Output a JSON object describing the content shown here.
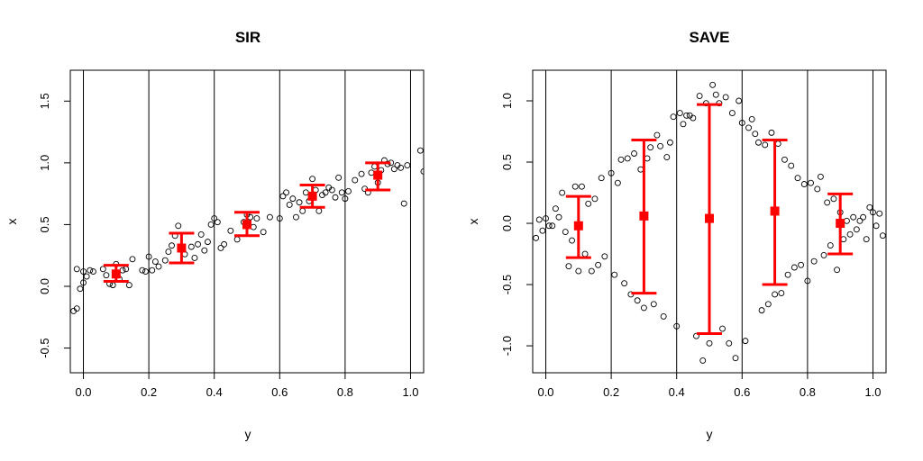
{
  "chart_data": [
    {
      "type": "scatter",
      "title": "SIR",
      "xlabel": "y",
      "ylabel": "x",
      "xlim": [
        -0.04,
        1.04
      ],
      "ylim": [
        -0.7,
        1.75
      ],
      "xticks": [
        "0.0",
        "0.2",
        "0.4",
        "0.6",
        "0.8",
        "1.0"
      ],
      "xtick_values": [
        0,
        0.2,
        0.4,
        0.6,
        0.8,
        1.0
      ],
      "yticks": [
        "-0.5",
        "0.0",
        "0.5",
        "1.0",
        "1.5"
      ],
      "ytick_values": [
        -0.5,
        0,
        0.5,
        1.0,
        1.5
      ],
      "slice_boundaries": [
        0,
        0.2,
        0.4,
        0.6,
        0.8,
        1.0
      ],
      "grid": false,
      "colors": {
        "points": "#000000",
        "summary": "#ff0000"
      },
      "slice_summaries": [
        {
          "x": 0.1,
          "mean": 0.1,
          "lower": 0.04,
          "upper": 0.17
        },
        {
          "x": 0.3,
          "mean": 0.31,
          "lower": 0.19,
          "upper": 0.43
        },
        {
          "x": 0.5,
          "mean": 0.5,
          "lower": 0.41,
          "upper": 0.6
        },
        {
          "x": 0.7,
          "mean": 0.73,
          "lower": 0.64,
          "upper": 0.82
        },
        {
          "x": 0.9,
          "mean": 0.9,
          "lower": 0.78,
          "upper": 1.0
        }
      ],
      "points": [
        [
          -0.03,
          -0.2
        ],
        [
          -0.02,
          -0.18
        ],
        [
          -0.01,
          -0.02
        ],
        [
          0.0,
          0.03
        ],
        [
          0.01,
          0.08
        ],
        [
          -0.02,
          0.14
        ],
        [
          0.0,
          0.12
        ],
        [
          0.02,
          0.13
        ],
        [
          0.03,
          0.12
        ],
        [
          0.06,
          0.14
        ],
        [
          0.07,
          0.09
        ],
        [
          0.08,
          0.02
        ],
        [
          0.09,
          0.01
        ],
        [
          0.1,
          0.18
        ],
        [
          0.11,
          0.06
        ],
        [
          0.12,
          0.13
        ],
        [
          0.14,
          0.01
        ],
        [
          0.15,
          0.22
        ],
        [
          0.13,
          0.14
        ],
        [
          0.18,
          0.13
        ],
        [
          0.19,
          0.12
        ],
        [
          0.2,
          0.24
        ],
        [
          0.21,
          0.13
        ],
        [
          0.22,
          0.2
        ],
        [
          0.23,
          0.16
        ],
        [
          0.25,
          0.21
        ],
        [
          0.26,
          0.28
        ],
        [
          0.27,
          0.33
        ],
        [
          0.28,
          0.41
        ],
        [
          0.29,
          0.49
        ],
        [
          0.31,
          0.26
        ],
        [
          0.33,
          0.32
        ],
        [
          0.34,
          0.23
        ],
        [
          0.35,
          0.34
        ],
        [
          0.36,
          0.42
        ],
        [
          0.37,
          0.29
        ],
        [
          0.38,
          0.36
        ],
        [
          0.39,
          0.5
        ],
        [
          0.4,
          0.55
        ],
        [
          0.41,
          0.52
        ],
        [
          0.42,
          0.31
        ],
        [
          0.43,
          0.34
        ],
        [
          0.45,
          0.45
        ],
        [
          0.47,
          0.38
        ],
        [
          0.49,
          0.52
        ],
        [
          0.5,
          0.58
        ],
        [
          0.51,
          0.56
        ],
        [
          0.52,
          0.48
        ],
        [
          0.53,
          0.55
        ],
        [
          0.55,
          0.44
        ],
        [
          0.57,
          0.56
        ],
        [
          0.6,
          0.55
        ],
        [
          0.61,
          0.73
        ],
        [
          0.62,
          0.76
        ],
        [
          0.63,
          0.66
        ],
        [
          0.64,
          0.71
        ],
        [
          0.65,
          0.56
        ],
        [
          0.66,
          0.68
        ],
        [
          0.67,
          0.61
        ],
        [
          0.68,
          0.76
        ],
        [
          0.69,
          0.69
        ],
        [
          0.7,
          0.87
        ],
        [
          0.71,
          0.78
        ],
        [
          0.72,
          0.61
        ],
        [
          0.73,
          0.74
        ],
        [
          0.74,
          0.76
        ],
        [
          0.75,
          0.8
        ],
        [
          0.76,
          0.78
        ],
        [
          0.77,
          0.72
        ],
        [
          0.78,
          0.88
        ],
        [
          0.79,
          0.76
        ],
        [
          0.8,
          0.71
        ],
        [
          0.81,
          0.77
        ],
        [
          0.83,
          0.86
        ],
        [
          0.85,
          0.91
        ],
        [
          0.86,
          0.79
        ],
        [
          0.87,
          0.76
        ],
        [
          0.88,
          0.92
        ],
        [
          0.89,
          0.97
        ],
        [
          0.9,
          0.84
        ],
        [
          0.91,
          0.94
        ],
        [
          0.92,
          1.02
        ],
        [
          0.93,
          0.99
        ],
        [
          0.94,
          1.0
        ],
        [
          0.95,
          0.95
        ],
        [
          0.96,
          0.98
        ],
        [
          0.97,
          0.96
        ],
        [
          0.98,
          0.67
        ],
        [
          0.99,
          0.98
        ],
        [
          1.03,
          1.1
        ],
        [
          1.04,
          0.93
        ]
      ]
    },
    {
      "type": "scatter",
      "title": "SAVE",
      "xlabel": "y",
      "ylabel": "x",
      "xlim": [
        -0.04,
        1.04
      ],
      "ylim": [
        -1.22,
        1.25
      ],
      "xticks": [
        "0.0",
        "0.2",
        "0.4",
        "0.6",
        "0.8",
        "1.0"
      ],
      "xtick_values": [
        0,
        0.2,
        0.4,
        0.6,
        0.8,
        1.0
      ],
      "yticks": [
        "-1.0",
        "-0.5",
        "0.0",
        "0.5",
        "1.0"
      ],
      "ytick_values": [
        -1.0,
        -0.5,
        0,
        0.5,
        1.0
      ],
      "slice_boundaries": [
        0,
        0.2,
        0.4,
        0.6,
        0.8,
        1.0
      ],
      "grid": false,
      "colors": {
        "points": "#000000",
        "summary": "#ff0000"
      },
      "slice_summaries": [
        {
          "x": 0.1,
          "mean": -0.02,
          "lower": -0.28,
          "upper": 0.22
        },
        {
          "x": 0.3,
          "mean": 0.06,
          "lower": -0.57,
          "upper": 0.68
        },
        {
          "x": 0.5,
          "mean": 0.04,
          "lower": -0.9,
          "upper": 0.97
        },
        {
          "x": 0.7,
          "mean": 0.1,
          "lower": -0.5,
          "upper": 0.68
        },
        {
          "x": 0.9,
          "mean": 0.0,
          "lower": -0.25,
          "upper": 0.24
        }
      ],
      "points": [
        [
          -0.03,
          -0.12
        ],
        [
          -0.02,
          0.03
        ],
        [
          -0.01,
          -0.06
        ],
        [
          0.0,
          0.04
        ],
        [
          0.01,
          -0.02
        ],
        [
          0.02,
          -0.02
        ],
        [
          0.03,
          0.12
        ],
        [
          0.04,
          0.05
        ],
        [
          0.05,
          0.25
        ],
        [
          0.06,
          -0.07
        ],
        [
          0.07,
          -0.35
        ],
        [
          0.08,
          -0.14
        ],
        [
          0.09,
          0.3
        ],
        [
          0.1,
          -0.39
        ],
        [
          0.11,
          0.3
        ],
        [
          0.12,
          -0.25
        ],
        [
          0.13,
          0.16
        ],
        [
          0.14,
          -0.39
        ],
        [
          0.15,
          0.2
        ],
        [
          0.16,
          -0.34
        ],
        [
          0.17,
          0.37
        ],
        [
          0.18,
          -0.27
        ],
        [
          0.2,
          0.41
        ],
        [
          0.21,
          -0.42
        ],
        [
          0.22,
          0.33
        ],
        [
          0.23,
          0.52
        ],
        [
          0.24,
          -0.49
        ],
        [
          0.25,
          0.53
        ],
        [
          0.26,
          -0.58
        ],
        [
          0.27,
          0.57
        ],
        [
          0.28,
          -0.63
        ],
        [
          0.29,
          0.44
        ],
        [
          0.3,
          -0.69
        ],
        [
          0.31,
          0.53
        ],
        [
          0.32,
          0.62
        ],
        [
          0.33,
          -0.66
        ],
        [
          0.34,
          0.72
        ],
        [
          0.35,
          0.63
        ],
        [
          0.36,
          -0.76
        ],
        [
          0.37,
          0.54
        ],
        [
          0.38,
          0.66
        ],
        [
          0.39,
          0.87
        ],
        [
          0.4,
          -0.84
        ],
        [
          0.41,
          0.9
        ],
        [
          0.42,
          0.81
        ],
        [
          0.43,
          0.88
        ],
        [
          0.44,
          0.88
        ],
        [
          0.45,
          0.86
        ],
        [
          0.46,
          -0.92
        ],
        [
          0.47,
          1.04
        ],
        [
          0.48,
          -1.12
        ],
        [
          0.49,
          0.98
        ],
        [
          0.5,
          -0.98
        ],
        [
          0.51,
          1.13
        ],
        [
          0.52,
          1.05
        ],
        [
          0.53,
          0.98
        ],
        [
          0.54,
          -0.86
        ],
        [
          0.55,
          1.03
        ],
        [
          0.56,
          -0.98
        ],
        [
          0.57,
          0.9
        ],
        [
          0.58,
          -1.1
        ],
        [
          0.59,
          1.0
        ],
        [
          0.6,
          0.82
        ],
        [
          0.61,
          -0.96
        ],
        [
          0.62,
          0.78
        ],
        [
          0.63,
          0.85
        ],
        [
          0.64,
          0.73
        ],
        [
          0.65,
          0.66
        ],
        [
          0.66,
          -0.71
        ],
        [
          0.67,
          0.64
        ],
        [
          0.68,
          -0.66
        ],
        [
          0.69,
          0.74
        ],
        [
          0.7,
          -0.58
        ],
        [
          0.71,
          0.65
        ],
        [
          0.72,
          -0.57
        ],
        [
          0.73,
          0.52
        ],
        [
          0.74,
          -0.42
        ],
        [
          0.75,
          0.47
        ],
        [
          0.76,
          -0.36
        ],
        [
          0.77,
          0.37
        ],
        [
          0.78,
          -0.34
        ],
        [
          0.79,
          0.32
        ],
        [
          0.8,
          -0.47
        ],
        [
          0.81,
          0.33
        ],
        [
          0.82,
          -0.31
        ],
        [
          0.83,
          0.28
        ],
        [
          0.84,
          0.38
        ],
        [
          0.85,
          -0.26
        ],
        [
          0.86,
          0.17
        ],
        [
          0.87,
          -0.18
        ],
        [
          0.88,
          0.2
        ],
        [
          0.89,
          -0.38
        ],
        [
          0.9,
          0.09
        ],
        [
          0.91,
          -0.13
        ],
        [
          0.92,
          0.02
        ],
        [
          0.93,
          -0.09
        ],
        [
          0.94,
          0.05
        ],
        [
          0.95,
          -0.05
        ],
        [
          0.96,
          0.02
        ],
        [
          0.97,
          0.05
        ],
        [
          0.98,
          -0.13
        ],
        [
          0.99,
          0.13
        ],
        [
          1.0,
          0.09
        ],
        [
          1.01,
          -0.02
        ],
        [
          1.02,
          0.08
        ],
        [
          1.03,
          -0.1
        ]
      ]
    }
  ]
}
